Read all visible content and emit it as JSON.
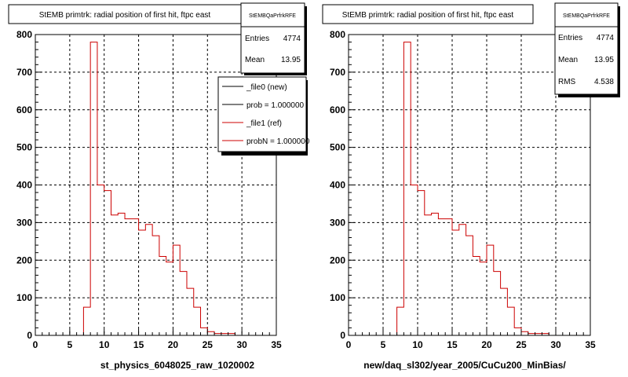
{
  "footer_note": "",
  "chart_data": [
    {
      "type": "bar",
      "title": "StEMB primtrk: radial position of first hit, ftpc east",
      "stats": {
        "name": "StEMBQaPrfrkRFE",
        "entries_label": "Entries",
        "entries": "4774",
        "mean_label": "Mean",
        "mean": "13.95"
      },
      "xlabel": "st_physics_6048025_raw_1020002",
      "ylabel": "",
      "xlim": [
        0,
        35
      ],
      "ylim": [
        0,
        800
      ],
      "xticks": [
        0,
        5,
        10,
        15,
        20,
        25,
        30,
        35
      ],
      "yticks": [
        0,
        100,
        200,
        300,
        400,
        500,
        600,
        700,
        800
      ],
      "grid": true,
      "legend": {
        "placement": "top-right",
        "entries": [
          {
            "label": "_file0 (new)",
            "color": "#000000"
          },
          {
            "label": "prob = 1.000000",
            "color": "#000000"
          },
          {
            "label": "_file1 (ref)",
            "color": "#cc0000"
          },
          {
            "label": "probN = 1.000000",
            "color": "#cc0000"
          }
        ]
      },
      "series": [
        {
          "color": "#cc0000",
          "x": [
            7,
            8,
            9,
            10,
            11,
            12,
            13,
            14,
            15,
            16,
            17,
            18,
            19,
            20,
            21,
            22,
            23,
            24,
            25,
            26,
            27,
            28,
            29
          ],
          "values": [
            75,
            780,
            400,
            385,
            320,
            325,
            310,
            310,
            280,
            295,
            265,
            210,
            195,
            240,
            170,
            125,
            75,
            20,
            10,
            5,
            5,
            5,
            0
          ]
        }
      ],
      "bin_width": 1
    },
    {
      "type": "bar",
      "title": "StEMB primtrk: radial position of first hit, ftpc east",
      "stats": {
        "name": "StEMBQaPrfrkRFE",
        "entries_label": "Entries",
        "entries": "4774",
        "mean_label": "Mean",
        "mean": "13.95",
        "rms_label": "RMS",
        "rms": "4.538"
      },
      "xlabel": "new/daq_sl302/year_2005/CuCu200_MinBias/",
      "ylabel": "",
      "xlim": [
        0,
        35
      ],
      "ylim": [
        0,
        800
      ],
      "xticks": [
        0,
        5,
        10,
        15,
        20,
        25,
        30,
        35
      ],
      "yticks": [
        0,
        100,
        200,
        300,
        400,
        500,
        600,
        700,
        800
      ],
      "grid": true,
      "series": [
        {
          "color": "#cc0000",
          "x": [
            7,
            8,
            9,
            10,
            11,
            12,
            13,
            14,
            15,
            16,
            17,
            18,
            19,
            20,
            21,
            22,
            23,
            24,
            25,
            26,
            27,
            28,
            29
          ],
          "values": [
            75,
            780,
            400,
            385,
            320,
            325,
            310,
            310,
            280,
            295,
            265,
            210,
            195,
            240,
            170,
            125,
            75,
            20,
            10,
            5,
            5,
            5,
            0
          ]
        }
      ],
      "bin_width": 1
    }
  ]
}
